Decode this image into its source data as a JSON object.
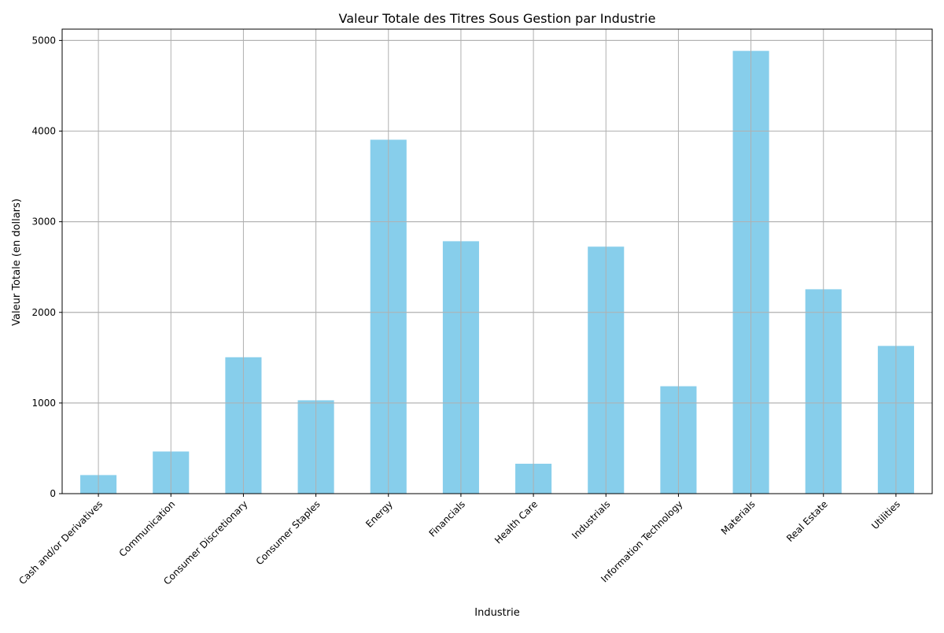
{
  "chart_data": {
    "type": "bar",
    "title": "Valeur Totale des Titres Sous Gestion par Industrie",
    "xlabel": "Industrie",
    "ylabel": "Valeur Totale (en dollars)",
    "categories": [
      "Cash and/or Derivatives",
      "Communication",
      "Consumer Discretionary",
      "Consumer Staples",
      "Energy",
      "Financials",
      "Health Care",
      "Industrials",
      "Information Technology",
      "Materials",
      "Real Estate",
      "Utilities"
    ],
    "values": [
      205,
      465,
      1505,
      1030,
      3905,
      2785,
      330,
      2725,
      1185,
      4885,
      2255,
      1630
    ],
    "ylim": [
      0,
      5125
    ],
    "yticks": [
      0,
      1000,
      2000,
      3000,
      4000,
      5000
    ],
    "grid": true,
    "legend": "none",
    "colors": {
      "bar": "#87ceeb",
      "grid": "#b0b0b0",
      "axis": "#000000"
    }
  }
}
